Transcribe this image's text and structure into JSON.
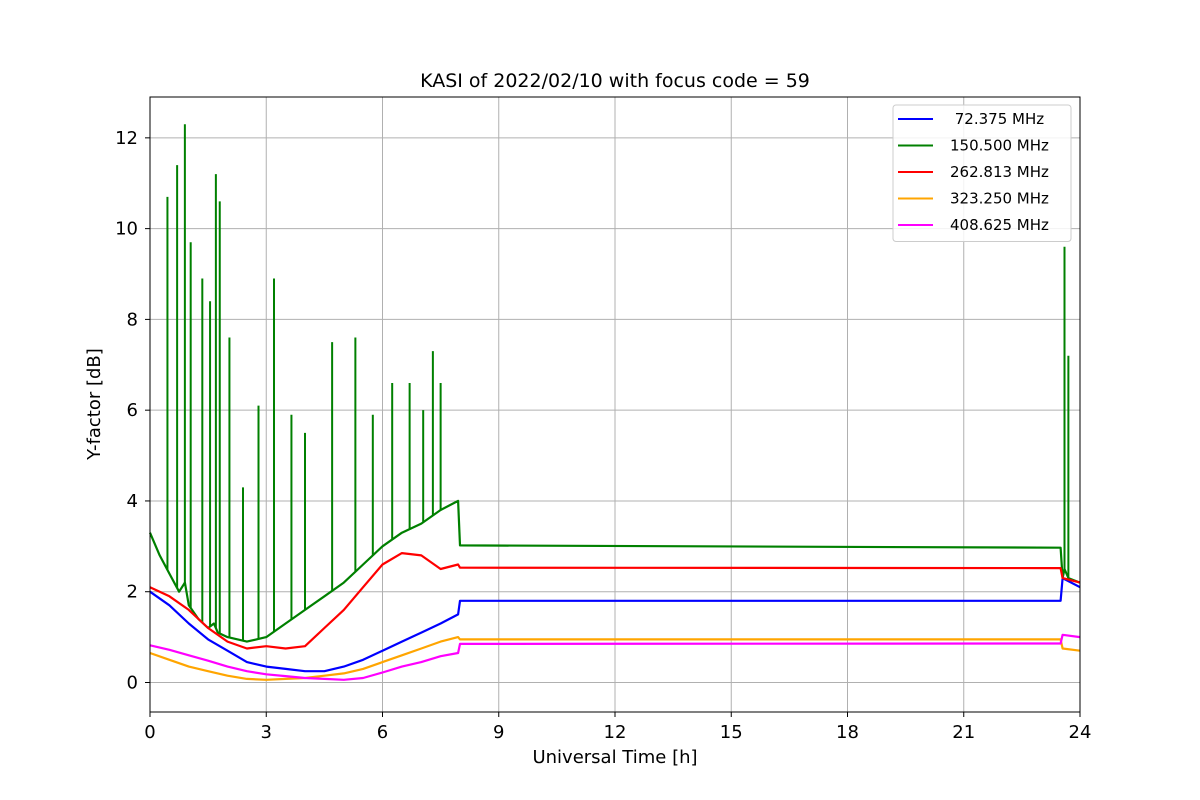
{
  "chart_data": {
    "type": "line",
    "title": "KASI of 2022/02/10 with focus code = 59",
    "xlabel": "Universal Time [h]",
    "ylabel": "Y-factor [dB]",
    "xlim": [
      0,
      24
    ],
    "ylim": [
      -0.65,
      12.9
    ],
    "xticks": [
      0,
      3,
      6,
      9,
      12,
      15,
      18,
      21,
      24
    ],
    "yticks": [
      0,
      2,
      4,
      6,
      8,
      10,
      12
    ],
    "grid": true,
    "legend_position": "top-right",
    "series": [
      {
        "name": " 72.375 MHz",
        "color": "#0000ff",
        "x": [
          0,
          0.5,
          1,
          1.5,
          2,
          2.5,
          3,
          3.5,
          4,
          4.5,
          5,
          5.5,
          6,
          6.5,
          7,
          7.5,
          7.95,
          8.0,
          23.5,
          23.55,
          24
        ],
        "y": [
          2.0,
          1.7,
          1.3,
          0.95,
          0.7,
          0.45,
          0.35,
          0.3,
          0.25,
          0.25,
          0.35,
          0.5,
          0.7,
          0.9,
          1.1,
          1.3,
          1.5,
          1.8,
          1.8,
          2.3,
          2.1
        ]
      },
      {
        "name": "150.500 MHz",
        "color": "#008000",
        "x": [
          0,
          0.25,
          0.5,
          0.75,
          0.9,
          1.0,
          1.25,
          1.5,
          1.65,
          1.75,
          2.0,
          2.5,
          3.0,
          3.5,
          4.0,
          4.5,
          5.0,
          5.5,
          6.0,
          6.5,
          7.0,
          7.5,
          7.95,
          8.0,
          23.5,
          23.55,
          23.6,
          23.7,
          24
        ],
        "y": [
          3.3,
          2.8,
          2.4,
          2.0,
          2.2,
          1.7,
          1.4,
          1.2,
          1.3,
          1.1,
          1.0,
          0.9,
          1.0,
          1.3,
          1.6,
          1.9,
          2.2,
          2.6,
          3.0,
          3.3,
          3.5,
          3.8,
          4.0,
          3.02,
          2.97,
          2.3,
          2.5,
          2.3,
          2.2
        ],
        "spikes": [
          {
            "x": 0.45,
            "y": 10.7
          },
          {
            "x": 0.7,
            "y": 11.4
          },
          {
            "x": 0.9,
            "y": 12.3
          },
          {
            "x": 1.05,
            "y": 9.7
          },
          {
            "x": 1.35,
            "y": 8.9
          },
          {
            "x": 1.55,
            "y": 8.4
          },
          {
            "x": 1.7,
            "y": 11.2
          },
          {
            "x": 1.8,
            "y": 10.6
          },
          {
            "x": 2.05,
            "y": 7.6
          },
          {
            "x": 2.4,
            "y": 4.3
          },
          {
            "x": 2.8,
            "y": 6.1
          },
          {
            "x": 3.2,
            "y": 8.9
          },
          {
            "x": 3.65,
            "y": 5.9
          },
          {
            "x": 4.0,
            "y": 5.5
          },
          {
            "x": 4.7,
            "y": 7.5
          },
          {
            "x": 5.3,
            "y": 7.6
          },
          {
            "x": 5.75,
            "y": 5.9
          },
          {
            "x": 6.25,
            "y": 6.6
          },
          {
            "x": 6.7,
            "y": 6.6
          },
          {
            "x": 7.05,
            "y": 6.0
          },
          {
            "x": 7.3,
            "y": 7.3
          },
          {
            "x": 7.5,
            "y": 6.6
          },
          {
            "x": 23.6,
            "y": 9.6
          },
          {
            "x": 23.7,
            "y": 7.2
          }
        ]
      },
      {
        "name": "262.813 MHz",
        "color": "#ff0000",
        "x": [
          0,
          0.5,
          1,
          1.5,
          2,
          2.5,
          3,
          3.5,
          4,
          4.5,
          5,
          5.5,
          6,
          6.5,
          7,
          7.5,
          7.95,
          8.0,
          23.5,
          23.55,
          24
        ],
        "y": [
          2.1,
          1.9,
          1.6,
          1.2,
          0.9,
          0.75,
          0.8,
          0.75,
          0.8,
          1.2,
          1.6,
          2.1,
          2.6,
          2.85,
          2.8,
          2.5,
          2.6,
          2.53,
          2.52,
          2.3,
          2.2
        ]
      },
      {
        "name": "323.250 MHz",
        "color": "#ffa500",
        "x": [
          0,
          0.5,
          1,
          1.5,
          2,
          2.5,
          3,
          3.5,
          4,
          4.5,
          5,
          5.5,
          6,
          6.5,
          7,
          7.5,
          7.95,
          8.0,
          23.5,
          23.55,
          24
        ],
        "y": [
          0.65,
          0.5,
          0.35,
          0.25,
          0.15,
          0.08,
          0.06,
          0.08,
          0.1,
          0.15,
          0.2,
          0.3,
          0.45,
          0.6,
          0.75,
          0.9,
          1.0,
          0.95,
          0.95,
          0.75,
          0.7
        ]
      },
      {
        "name": "408.625 MHz",
        "color": "#ff00ff",
        "x": [
          0,
          0.5,
          1,
          1.5,
          2,
          2.5,
          3,
          3.5,
          4,
          4.5,
          5,
          5.5,
          6,
          6.5,
          7,
          7.5,
          7.95,
          8.0,
          23.5,
          23.55,
          24
        ],
        "y": [
          0.82,
          0.72,
          0.6,
          0.48,
          0.35,
          0.25,
          0.18,
          0.14,
          0.1,
          0.08,
          0.06,
          0.1,
          0.22,
          0.35,
          0.45,
          0.58,
          0.65,
          0.85,
          0.86,
          1.05,
          1.0
        ]
      }
    ]
  }
}
